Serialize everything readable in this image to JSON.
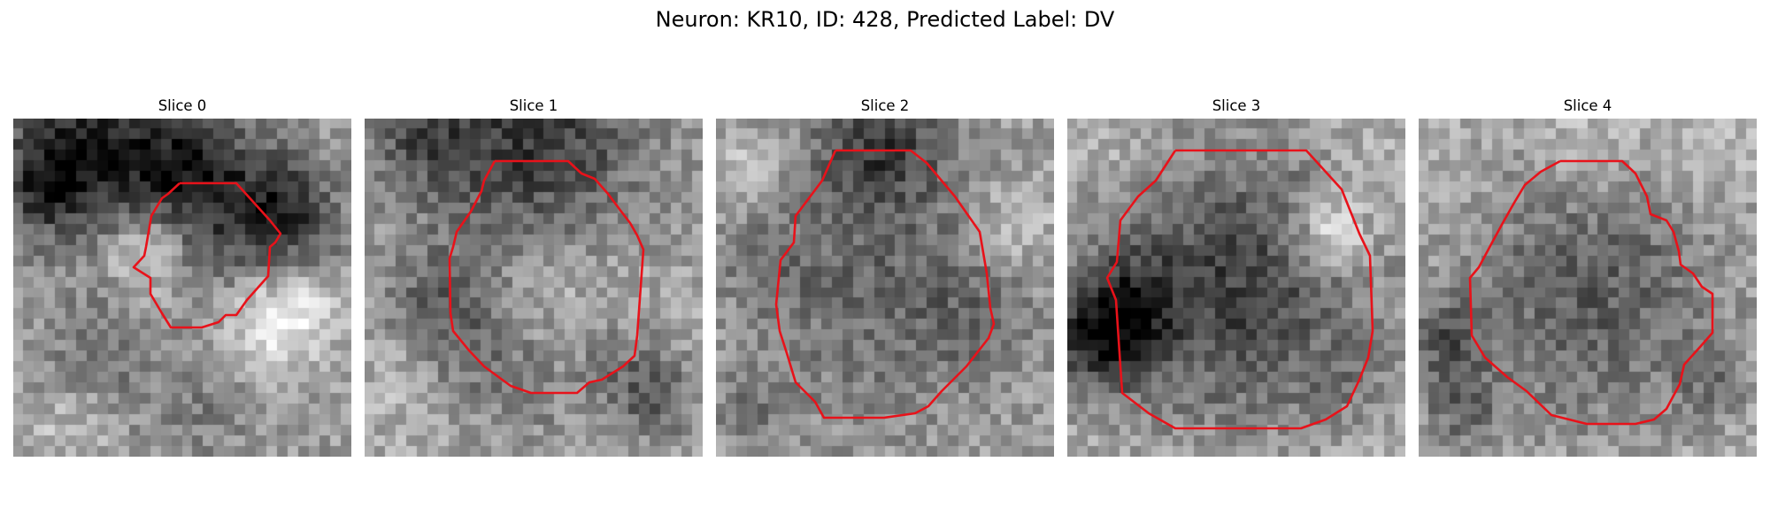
{
  "figure": {
    "title": "Neuron: KR10, ID: 428, Predicted Label: DV"
  },
  "panels": [
    {
      "label": "Slice 0"
    },
    {
      "label": "Slice 1"
    },
    {
      "label": "Slice 2"
    },
    {
      "label": "Slice 3"
    },
    {
      "label": "Slice 4"
    }
  ],
  "colors": {
    "contour": "#e8121a",
    "background": "#ffffff",
    "text": "#000000"
  }
}
